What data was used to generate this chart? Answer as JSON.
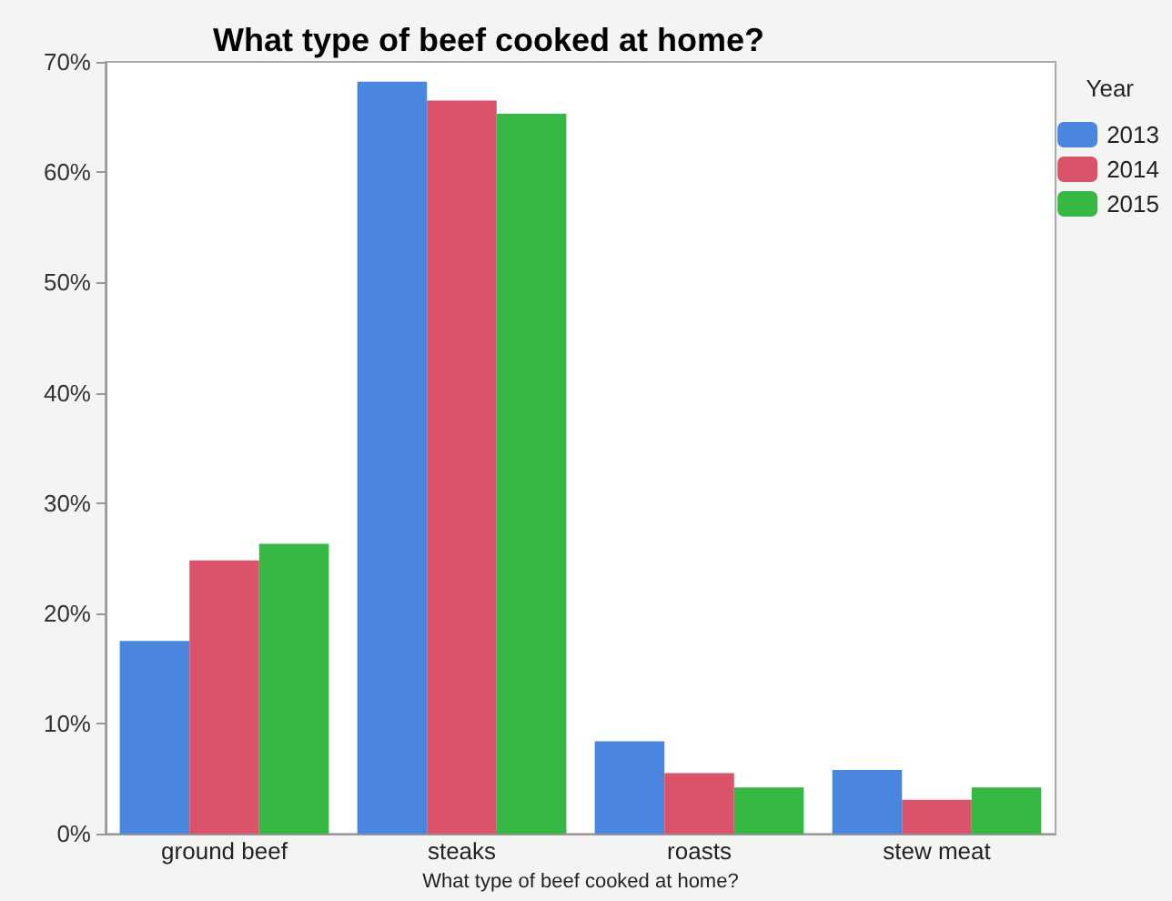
{
  "chart_data": {
    "type": "bar",
    "title": "What type of beef cooked at home?",
    "xlabel": "What type of beef cooked at home?",
    "legend_title": "Year",
    "categories": [
      "ground beef",
      "steaks",
      "roasts",
      "stew meat"
    ],
    "series": [
      {
        "name": "2013",
        "color": "#4a86e0",
        "values": [
          17.5,
          68.2,
          8.4,
          5.8
        ]
      },
      {
        "name": "2014",
        "color": "#d9546a",
        "values": [
          24.8,
          66.5,
          5.5,
          3.1
        ]
      },
      {
        "name": "2015",
        "color": "#35b844",
        "values": [
          26.3,
          65.3,
          4.2,
          4.2
        ]
      }
    ],
    "ylim": [
      0,
      70
    ],
    "yticks": [
      {
        "value": 0,
        "label": "0%"
      },
      {
        "value": 10,
        "label": "10%"
      },
      {
        "value": 20,
        "label": "20%"
      },
      {
        "value": 30,
        "label": "30%"
      },
      {
        "value": 40,
        "label": "40%"
      },
      {
        "value": 50,
        "label": "50%"
      },
      {
        "value": 60,
        "label": "60%"
      },
      {
        "value": 70,
        "label": "70%"
      }
    ],
    "grid": false,
    "legend": "top right"
  }
}
